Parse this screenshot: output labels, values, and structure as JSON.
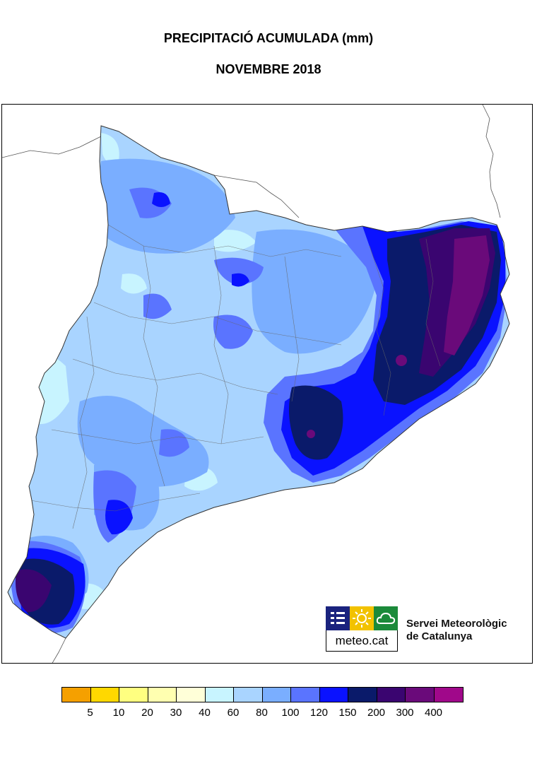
{
  "title": "PRECIPITACIÓ ACUMULADA (mm)",
  "subtitle": "NOVEMBRE 2018",
  "logo": {
    "text": "meteo.cat",
    "icons": [
      "bars-icon",
      "sun-icon",
      "cloud-icon"
    ],
    "colors": [
      "#1a237e",
      "#f2c200",
      "#1b8a3a"
    ]
  },
  "organization": {
    "line1": "Servei Meteorològic",
    "line2": "de Catalunya"
  },
  "legend": {
    "colors": [
      "#f5a000",
      "#ffd800",
      "#ffff80",
      "#ffffb0",
      "#ffffd8",
      "#c8f4ff",
      "#a9d4ff",
      "#7aaeff",
      "#5a74ff",
      "#0a12ff",
      "#0a1a6a",
      "#3a0570",
      "#6a0a7a",
      "#a0088a"
    ],
    "labels": [
      "5",
      "10",
      "20",
      "30",
      "40",
      "60",
      "80",
      "100",
      "120",
      "150",
      "200",
      "300",
      "400"
    ]
  },
  "map": {
    "region": "Catalunya",
    "colors": {
      "base": "#a9d4ff",
      "light": "#c8f4ff",
      "mid": "#7aaeff",
      "medium_high": "#5a74ff",
      "high": "#0a12ff",
      "very_high": "#0a1a6a",
      "extreme": "#3a0570",
      "max": "#6a0a7a"
    }
  }
}
